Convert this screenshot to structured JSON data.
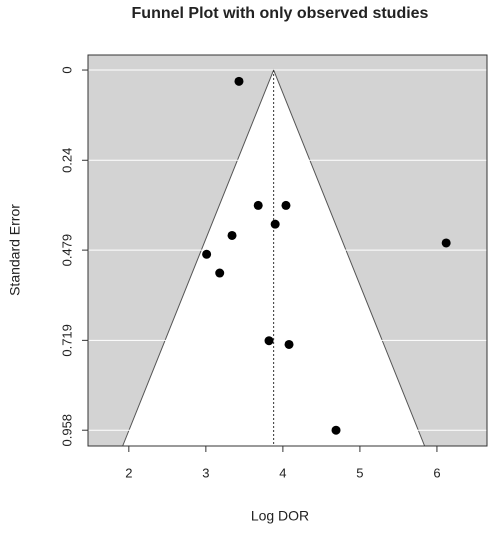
{
  "chart_data": {
    "type": "funnel",
    "title": "Funnel Plot with only observed studies",
    "x_label": "Log DOR",
    "y_label": "Standard Error",
    "x": [
      3.43,
      3.68,
      4.04,
      3.9,
      3.34,
      6.12,
      3.01,
      3.18,
      3.82,
      4.08,
      4.69
    ],
    "values": [
      0.03,
      0.36,
      0.36,
      0.41,
      0.44,
      0.46,
      0.49,
      0.54,
      0.72,
      0.73,
      0.958
    ],
    "color": "#000000",
    "pooled_estimate": 3.88,
    "ci_multiplier": 1.96,
    "xlim": [
      1.47,
      6.65
    ],
    "ylim": [
      -0.04,
      1.0
    ],
    "xticks": [
      2,
      3,
      4,
      5,
      6
    ],
    "yticks": [
      0,
      0.24,
      0.479,
      0.719,
      0.958
    ],
    "y_inverted": true,
    "grid": true
  }
}
